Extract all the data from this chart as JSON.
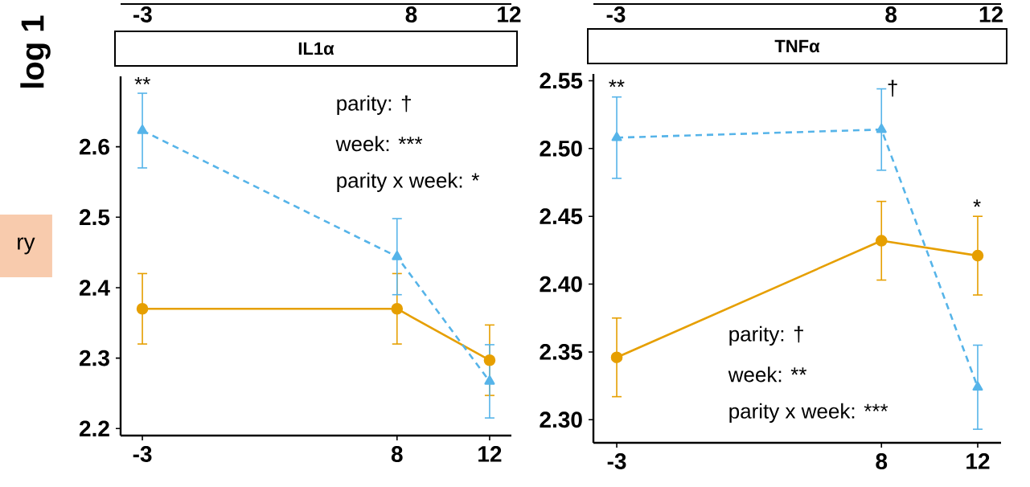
{
  "chart_data": [
    {
      "type": "line",
      "title": "IL1α",
      "ylabel": "log 1",
      "x": [
        -3,
        8,
        12
      ],
      "xlim": [
        -3.94,
        12.94
      ],
      "xticks": [
        -3,
        8,
        12
      ],
      "x2lim": [
        -3.9,
        12.1
      ],
      "x2ticks": [
        -3,
        8,
        12
      ],
      "ylim": [
        2.19,
        2.7
      ],
      "yticks": [
        2.2,
        2.3,
        2.4,
        2.5,
        2.6
      ],
      "series": [
        {
          "color": "#e69f00",
          "marker": "circle",
          "line_style": "solid",
          "values": [
            2.37,
            2.37,
            2.297
          ],
          "errors": [
            0.05,
            0.05,
            0.05
          ]
        },
        {
          "color": "#56b4e9",
          "marker": "triangle",
          "line_style": "dashed",
          "values": [
            2.623,
            2.444,
            2.267
          ],
          "errors": [
            0.053,
            0.054,
            0.052
          ]
        }
      ],
      "annotations": [
        "parity: †",
        "week: ***",
        "parity x week: *",
        "ry",
        "**"
      ]
    },
    {
      "type": "line",
      "title": "TNFα",
      "x": [
        -3,
        8,
        12
      ],
      "xlim": [
        -3.97,
        12.97
      ],
      "xticks": [
        -3,
        8,
        12
      ],
      "x2lim": [
        -3.9,
        12.4
      ],
      "x2ticks": [
        -3,
        8,
        12
      ],
      "ylim": [
        2.283,
        2.555
      ],
      "yticks": [
        {
          "value": 2.3,
          "label": "2.30"
        },
        {
          "value": 2.35,
          "label": "2.35"
        },
        {
          "value": 2.4,
          "label": "2.40"
        },
        {
          "value": 2.45,
          "label": "2.45"
        },
        {
          "value": 2.5,
          "label": "2.50"
        },
        {
          "value": 2.55,
          "label": "2.55"
        }
      ],
      "series": [
        {
          "color": "#e69f00",
          "marker": "circle",
          "line_style": "solid",
          "values": [
            2.346,
            2.432,
            2.421
          ],
          "errors": [
            0.029,
            0.029,
            0.029
          ]
        },
        {
          "color": "#56b4e9",
          "marker": "triangle",
          "line_style": "dashed",
          "values": [
            2.508,
            2.514,
            2.324
          ],
          "errors": [
            0.03,
            0.03,
            0.031
          ]
        }
      ],
      "annotations": [
        "parity: †",
        "week: **",
        "parity x week: ***",
        "**",
        "†",
        "*"
      ]
    }
  ]
}
